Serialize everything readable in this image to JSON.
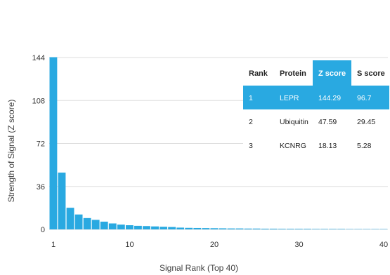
{
  "chart_data": {
    "type": "bar",
    "ylabel": "Strength of Signal (Z score)",
    "xlabel": "Signal Rank (Top 40)",
    "ylim": [
      0,
      144
    ],
    "xlim": [
      1,
      40
    ],
    "yticks": [
      "0",
      "36",
      "72",
      "108",
      "144"
    ],
    "xticks": [
      "1",
      "10",
      "20",
      "30",
      "40"
    ],
    "grid": true,
    "bar_color": "#29a9e1",
    "values": [
      144.29,
      47.59,
      18.13,
      12.5,
      9.5,
      8.0,
      6.5,
      5.0,
      4.0,
      3.5,
      3.0,
      2.8,
      2.5,
      2.2,
      2.0,
      1.5,
      1.3,
      1.2,
      1.1,
      1.0,
      0.9,
      0.8,
      0.8,
      0.7,
      0.7,
      0.6,
      0.6,
      0.5,
      0.5,
      0.5,
      0.5,
      0.4,
      0.4,
      0.4,
      0.4,
      0.3,
      0.3,
      0.3,
      0.3,
      0.3
    ],
    "table": {
      "headers": [
        "Rank",
        "Protein",
        "Z score",
        "S score"
      ],
      "highlight_color": "#29a9e1",
      "rows": [
        [
          "1",
          "LEPR",
          "144.29",
          "96.7"
        ],
        [
          "2",
          "Ubiquitin",
          "47.59",
          "29.45"
        ],
        [
          "3",
          "KCNRG",
          "18.13",
          "5.28"
        ]
      ]
    }
  }
}
